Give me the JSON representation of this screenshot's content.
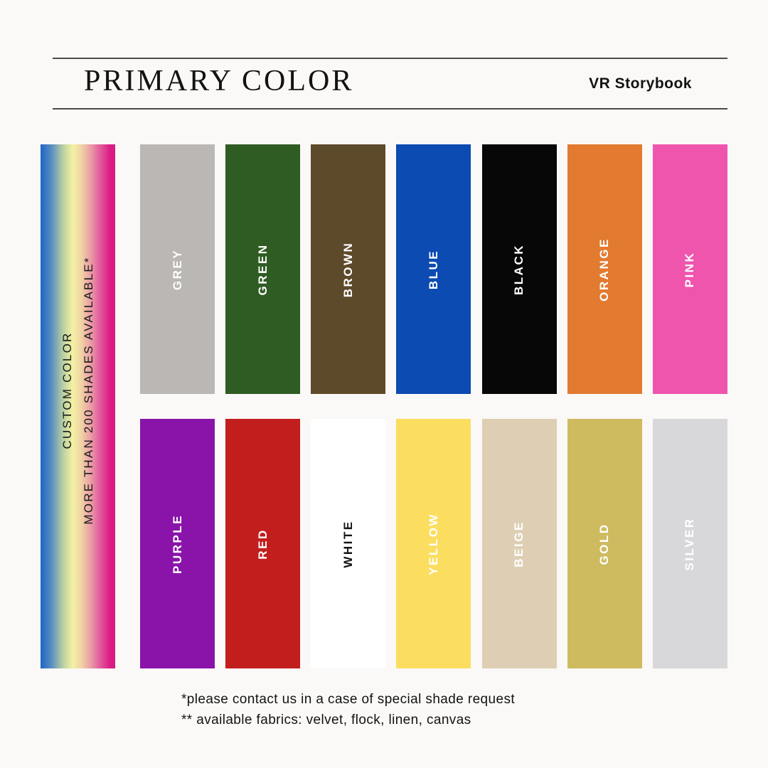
{
  "page": {
    "background": "#FAF9F7"
  },
  "header": {
    "title": "PRIMARY COLOR",
    "brand": "VR Storybook"
  },
  "custom_bar": {
    "line1": "CUSTOM COLOR",
    "line2": "MORE THAN 200 SHADES AVAILABLE*",
    "gradient_stops": [
      "#1E64C8 0%",
      "#5B8FC0 15%",
      "#B9CFA2 30%",
      "#F4F1A3 43%",
      "#F0D2A4 55%",
      "#EA9DA6 67%",
      "#E35F9E 79%",
      "#DB1D85 93%",
      "#D81A82 100%"
    ]
  },
  "swatches": {
    "rows": [
      {
        "items": [
          {
            "label": "GREY",
            "color": "#BAB7B4",
            "text_color": "#FFFFFF"
          },
          {
            "label": "GREEN",
            "color": "#2E5C22",
            "text_color": "#FFFFFF"
          },
          {
            "label": "BROWN",
            "color": "#5D4A2A",
            "text_color": "#FFFFFF"
          },
          {
            "label": "BLUE",
            "color": "#0B4BB2",
            "text_color": "#FFFFFF"
          },
          {
            "label": "BLACK",
            "color": "#070707",
            "text_color": "#FFFFFF"
          },
          {
            "label": "ORANGE",
            "color": "#E27A30",
            "text_color": "#FFFFFF"
          },
          {
            "label": "PINK",
            "color": "#EF55AD",
            "text_color": "#FFFFFF"
          }
        ]
      },
      {
        "items": [
          {
            "label": "PURPLE",
            "color": "#8A14A9",
            "text_color": "#FFFFFF"
          },
          {
            "label": "RED",
            "color": "#C21E1E",
            "text_color": "#FFFFFF"
          },
          {
            "label": "WHITE",
            "color": "#FFFFFF",
            "text_color": "#151515"
          },
          {
            "label": "YELLOW",
            "color": "#FBDE60",
            "text_color": "#FFFFFF"
          },
          {
            "label": "BEIGE",
            "color": "#DECFB4",
            "text_color": "#FFFFFF"
          },
          {
            "label": "GOLD",
            "color": "#CEBB60",
            "text_color": "#FFFFFF"
          },
          {
            "label": "SILVER",
            "color": "#D8D8DA",
            "text_color": "#FFFFFF"
          }
        ]
      }
    ]
  },
  "footer": {
    "note1": "*please contact us in a case of special shade request",
    "note2": "** available fabrics: velvet, flock, linen, canvas"
  }
}
